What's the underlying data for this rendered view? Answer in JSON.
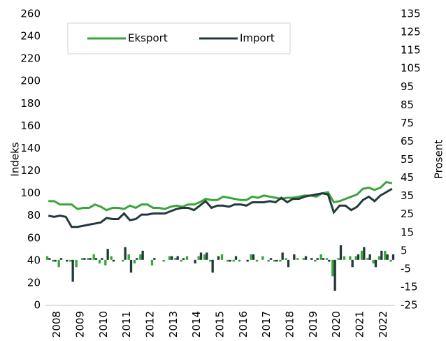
{
  "chart_data": {
    "type": "line",
    "y_label": "Indeks",
    "y2_label": "Prosent",
    "categories": [
      "2008",
      null,
      null,
      null,
      "2009",
      null,
      null,
      null,
      "2010",
      null,
      null,
      null,
      "2011",
      null,
      null,
      null,
      "2012",
      null,
      null,
      null,
      "2013",
      null,
      null,
      null,
      "2014",
      null,
      null,
      null,
      "2015",
      null,
      null,
      null,
      "2016",
      null,
      null,
      null,
      "2017",
      null,
      null,
      null,
      "2018",
      null,
      null,
      null,
      "2019",
      null,
      null,
      null,
      "2020",
      null,
      null,
      null,
      "2021",
      null,
      null,
      null,
      "2022",
      null,
      null,
      null
    ],
    "ylim": [
      0,
      260
    ],
    "yticks": [
      0,
      20,
      40,
      60,
      80,
      100,
      120,
      140,
      160,
      180,
      200,
      220,
      240,
      260
    ],
    "y2lim": [
      -25,
      135
    ],
    "y2ticks": [
      -25,
      -15,
      -5,
      5,
      15,
      25,
      35,
      45,
      55,
      65,
      75,
      85,
      95,
      105,
      115,
      125,
      135
    ],
    "legend": "upper left",
    "series": [
      {
        "name": "Eksport",
        "color": "#3aa53a",
        "values": [
          93,
          93,
          90,
          90,
          90,
          86,
          87,
          87,
          90,
          88,
          85,
          87,
          87,
          86,
          89,
          87,
          90,
          90,
          87,
          87,
          86,
          88,
          89,
          88,
          90,
          90,
          92,
          95,
          94,
          94,
          97,
          96,
          95,
          94,
          94,
          97,
          96,
          98,
          97,
          96,
          95,
          96,
          96,
          97,
          98,
          98,
          97,
          100,
          101,
          92,
          93,
          95,
          97,
          99,
          104,
          105,
          103,
          105,
          110,
          109
        ]
      },
      {
        "name": "Import",
        "color": "#24393e",
        "values": [
          80,
          79,
          80,
          79,
          70,
          70,
          71,
          72,
          73,
          74,
          78,
          77,
          77,
          82,
          76,
          77,
          81,
          81,
          82,
          82,
          82,
          84,
          86,
          87,
          87,
          85,
          89,
          93,
          87,
          89,
          89,
          88,
          90,
          90,
          89,
          92,
          92,
          92,
          93,
          92,
          96,
          92,
          95,
          95,
          97,
          98,
          99,
          100,
          99,
          83,
          89,
          89,
          85,
          88,
          94,
          97,
          93,
          98,
          101,
          104
        ]
      },
      {
        "type": "bar",
        "axis": "y2",
        "color": "#3aa53a",
        "values": [
          2,
          -1,
          -4,
          0,
          -1,
          -4,
          1,
          1,
          3,
          -2,
          -3,
          2,
          0,
          -1,
          3,
          -2,
          3,
          0,
          -3,
          0,
          -1,
          2,
          1,
          -1,
          2,
          0,
          2,
          3,
          -1,
          0,
          3,
          -1,
          -1,
          -1,
          0,
          3,
          -1,
          2,
          -1,
          -1,
          -1,
          1,
          0,
          1,
          1,
          0,
          -1,
          3,
          1,
          -9,
          1,
          2,
          2,
          2,
          5,
          1,
          -2,
          2,
          5,
          -1
        ]
      },
      {
        "type": "bar",
        "axis": "y2",
        "color": "#24393e",
        "values": [
          1,
          -1,
          1,
          -1,
          -12,
          0,
          1,
          1,
          1,
          1,
          6,
          -1,
          0,
          7,
          -7,
          1,
          5,
          0,
          1,
          0,
          0,
          2,
          2,
          1,
          0,
          -2,
          4,
          4,
          -7,
          2,
          0,
          -1,
          2,
          0,
          -1,
          3,
          0,
          0,
          1,
          -1,
          4,
          -4,
          3,
          0,
          2,
          1,
          1,
          1,
          -1,
          -17,
          8,
          0,
          -4,
          3,
          7,
          3,
          -4,
          5,
          3,
          3
        ]
      }
    ]
  }
}
